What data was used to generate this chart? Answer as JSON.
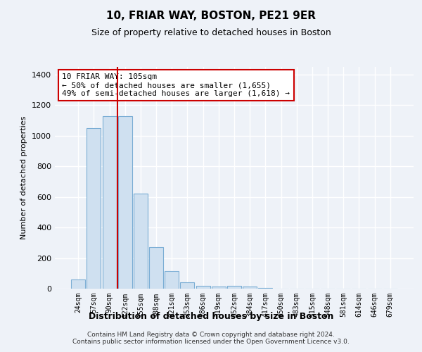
{
  "title": "10, FRIAR WAY, BOSTON, PE21 9ER",
  "subtitle": "Size of property relative to detached houses in Boston",
  "xlabel": "Distribution of detached houses by size in Boston",
  "ylabel": "Number of detached properties",
  "bar_color": "#cfe0f0",
  "bar_edge_color": "#7aadd4",
  "categories": [
    "24sqm",
    "57sqm",
    "90sqm",
    "122sqm",
    "155sqm",
    "188sqm",
    "221sqm",
    "253sqm",
    "286sqm",
    "319sqm",
    "352sqm",
    "384sqm",
    "417sqm",
    "450sqm",
    "483sqm",
    "515sqm",
    "548sqm",
    "581sqm",
    "614sqm",
    "646sqm",
    "679sqm"
  ],
  "values": [
    60,
    1050,
    1130,
    1130,
    620,
    270,
    115,
    40,
    20,
    15,
    20,
    15,
    5,
    0,
    0,
    0,
    0,
    0,
    0,
    0,
    0
  ],
  "ylim": [
    0,
    1450
  ],
  "yticks": [
    0,
    200,
    400,
    600,
    800,
    1000,
    1200,
    1400
  ],
  "property_line_x": 2.5,
  "annotation_text": "10 FRIAR WAY: 105sqm\n← 50% of detached houses are smaller (1,655)\n49% of semi-detached houses are larger (1,618) →",
  "annotation_box_color": "#ffffff",
  "annotation_box_edge_color": "#cc0000",
  "line_color": "#cc0000",
  "footer": "Contains HM Land Registry data © Crown copyright and database right 2024.\nContains public sector information licensed under the Open Government Licence v3.0.",
  "bg_color": "#eef2f8",
  "plot_bg_color": "#eef2f8",
  "grid_color": "#ffffff"
}
